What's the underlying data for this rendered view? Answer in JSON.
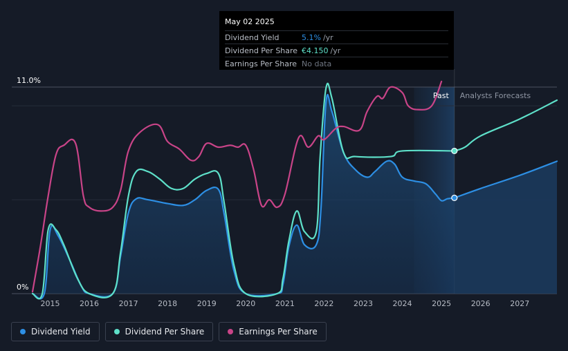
{
  "chart_data": {
    "type": "line",
    "title": "",
    "xlabel": "",
    "ylabel": "",
    "ylim": [
      0,
      11
    ],
    "y_axis_labels": {
      "top": "11.0%",
      "bottom": "0%"
    },
    "x_ticks": [
      "2015",
      "2016",
      "2017",
      "2018",
      "2019",
      "2020",
      "2021",
      "2022",
      "2023",
      "2024",
      "2025",
      "2026",
      "2027"
    ],
    "x_tick_values": [
      2015,
      2016,
      2017,
      2018,
      2019,
      2020,
      2021,
      2022,
      2023,
      2024,
      2025,
      2026,
      2027
    ],
    "xlim": [
      2014.55,
      2027.95
    ],
    "past_label": "Past",
    "forecast_label": "Analysts Forecasts",
    "forecast_start": 2025.33,
    "past_band_start": 2024.3,
    "series": [
      {
        "name": "Dividend Yield",
        "color": "#2d8fe4",
        "filled": true,
        "points": [
          [
            2014.55,
            0
          ],
          [
            2014.85,
            0
          ],
          [
            2015.0,
            3.4
          ],
          [
            2015.2,
            3.1
          ],
          [
            2015.5,
            1.8
          ],
          [
            2015.8,
            0.4
          ],
          [
            2016.0,
            0
          ],
          [
            2016.6,
            0
          ],
          [
            2016.8,
            2.0
          ],
          [
            2017.0,
            4.3
          ],
          [
            2017.2,
            5.05
          ],
          [
            2017.5,
            5.0
          ],
          [
            2018.0,
            4.8
          ],
          [
            2018.4,
            4.7
          ],
          [
            2018.7,
            5.0
          ],
          [
            2019.0,
            5.5
          ],
          [
            2019.3,
            5.55
          ],
          [
            2019.45,
            4.2
          ],
          [
            2019.7,
            1.2
          ],
          [
            2020.0,
            0
          ],
          [
            2020.8,
            0
          ],
          [
            2020.95,
            0.5
          ],
          [
            2021.1,
            2.5
          ],
          [
            2021.3,
            3.65
          ],
          [
            2021.5,
            2.6
          ],
          [
            2021.8,
            2.6
          ],
          [
            2021.92,
            4.5
          ],
          [
            2022.05,
            10.2
          ],
          [
            2022.2,
            9.7
          ],
          [
            2022.5,
            7.5
          ],
          [
            2022.8,
            6.6
          ],
          [
            2023.1,
            6.2
          ],
          [
            2023.3,
            6.5
          ],
          [
            2023.6,
            7.05
          ],
          [
            2023.8,
            6.9
          ],
          [
            2024.0,
            6.2
          ],
          [
            2024.3,
            6.0
          ],
          [
            2024.6,
            5.85
          ],
          [
            2024.85,
            5.3
          ],
          [
            2025.0,
            4.95
          ],
          [
            2025.15,
            5.05
          ],
          [
            2025.33,
            5.1
          ]
        ]
      },
      {
        "name": "Dividend Yield Forecast",
        "color": "#2d8fe4",
        "filled": true,
        "forecast": true,
        "points": [
          [
            2025.33,
            5.1
          ],
          [
            2026.0,
            5.6
          ],
          [
            2027.0,
            6.3
          ],
          [
            2027.95,
            7.05
          ]
        ]
      },
      {
        "name": "Dividend Per Share",
        "color": "#5ee0c9",
        "points": [
          [
            2014.55,
            0
          ],
          [
            2014.8,
            0
          ],
          [
            2014.95,
            3.4
          ],
          [
            2015.15,
            3.4
          ],
          [
            2015.35,
            2.6
          ],
          [
            2015.7,
            0.8
          ],
          [
            2016.0,
            0
          ],
          [
            2016.6,
            0
          ],
          [
            2016.8,
            2.2
          ],
          [
            2017.0,
            5.2
          ],
          [
            2017.2,
            6.5
          ],
          [
            2017.5,
            6.5
          ],
          [
            2017.8,
            6.1
          ],
          [
            2018.1,
            5.6
          ],
          [
            2018.4,
            5.6
          ],
          [
            2018.7,
            6.1
          ],
          [
            2019.0,
            6.4
          ],
          [
            2019.3,
            6.4
          ],
          [
            2019.45,
            4.8
          ],
          [
            2019.7,
            1.5
          ],
          [
            2020.0,
            0
          ],
          [
            2020.8,
            0
          ],
          [
            2020.95,
            0.8
          ],
          [
            2021.1,
            2.8
          ],
          [
            2021.3,
            4.4
          ],
          [
            2021.5,
            3.3
          ],
          [
            2021.8,
            3.3
          ],
          [
            2021.9,
            7.3
          ],
          [
            2022.05,
            10.95
          ],
          [
            2022.2,
            10.4
          ],
          [
            2022.5,
            7.5
          ],
          [
            2022.8,
            7.3
          ],
          [
            2023.7,
            7.3
          ],
          [
            2024.0,
            7.6
          ],
          [
            2025.33,
            7.6
          ]
        ]
      },
      {
        "name": "Dividend Per Share Forecast",
        "color": "#5ee0c9",
        "forecast": true,
        "points": [
          [
            2025.33,
            7.6
          ],
          [
            2025.6,
            7.8
          ],
          [
            2026.0,
            8.4
          ],
          [
            2027.0,
            9.3
          ],
          [
            2027.95,
            10.3
          ]
        ]
      },
      {
        "name": "Earnings Per Share",
        "color": "#c94488",
        "points": [
          [
            2014.55,
            0.1
          ],
          [
            2014.75,
            2.5
          ],
          [
            2014.95,
            5.2
          ],
          [
            2015.15,
            7.4
          ],
          [
            2015.35,
            7.9
          ],
          [
            2015.65,
            8.0
          ],
          [
            2015.85,
            5.2
          ],
          [
            2016.0,
            4.6
          ],
          [
            2016.3,
            4.4
          ],
          [
            2016.6,
            4.6
          ],
          [
            2016.8,
            5.5
          ],
          [
            2017.0,
            7.6
          ],
          [
            2017.3,
            8.6
          ],
          [
            2017.75,
            9.0
          ],
          [
            2018.0,
            8.1
          ],
          [
            2018.3,
            7.7
          ],
          [
            2018.6,
            7.1
          ],
          [
            2018.8,
            7.3
          ],
          [
            2019.0,
            8.0
          ],
          [
            2019.3,
            7.8
          ],
          [
            2019.6,
            7.9
          ],
          [
            2019.8,
            7.8
          ],
          [
            2020.0,
            7.9
          ],
          [
            2020.2,
            6.6
          ],
          [
            2020.4,
            4.7
          ],
          [
            2020.6,
            5.0
          ],
          [
            2020.8,
            4.6
          ],
          [
            2021.0,
            5.3
          ],
          [
            2021.35,
            8.3
          ],
          [
            2021.6,
            7.8
          ],
          [
            2021.85,
            8.4
          ],
          [
            2022.0,
            8.2
          ],
          [
            2022.3,
            8.8
          ],
          [
            2022.5,
            8.9
          ],
          [
            2022.9,
            8.7
          ],
          [
            2023.1,
            9.7
          ],
          [
            2023.35,
            10.5
          ],
          [
            2023.5,
            10.4
          ],
          [
            2023.7,
            11.0
          ],
          [
            2024.0,
            10.7
          ],
          [
            2024.15,
            10.0
          ],
          [
            2024.4,
            9.8
          ],
          [
            2024.75,
            10.0
          ],
          [
            2025.0,
            11.3
          ]
        ]
      }
    ],
    "markers": [
      {
        "series": "Dividend Per Share",
        "x": 2025.33,
        "y": 7.6,
        "color": "#5ee0c9"
      },
      {
        "series": "Dividend Yield",
        "x": 2025.33,
        "y": 5.1,
        "color": "#2d8fe4"
      }
    ]
  },
  "tooltip": {
    "date": "May 02 2025",
    "rows": [
      {
        "label": "Dividend Yield",
        "value": "5.1%",
        "unit": "/yr",
        "color": "#2d8fe4"
      },
      {
        "label": "Dividend Per Share",
        "value": "€4.150",
        "unit": "/yr",
        "color": "#5ee0c9"
      },
      {
        "label": "Earnings Per Share",
        "value": "No data",
        "unit": "",
        "color": "#6f7682"
      }
    ]
  },
  "legend": [
    {
      "label": "Dividend Yield",
      "color": "#2d8fe4"
    },
    {
      "label": "Dividend Per Share",
      "color": "#5ee0c9"
    },
    {
      "label": "Earnings Per Share",
      "color": "#c94488"
    }
  ]
}
